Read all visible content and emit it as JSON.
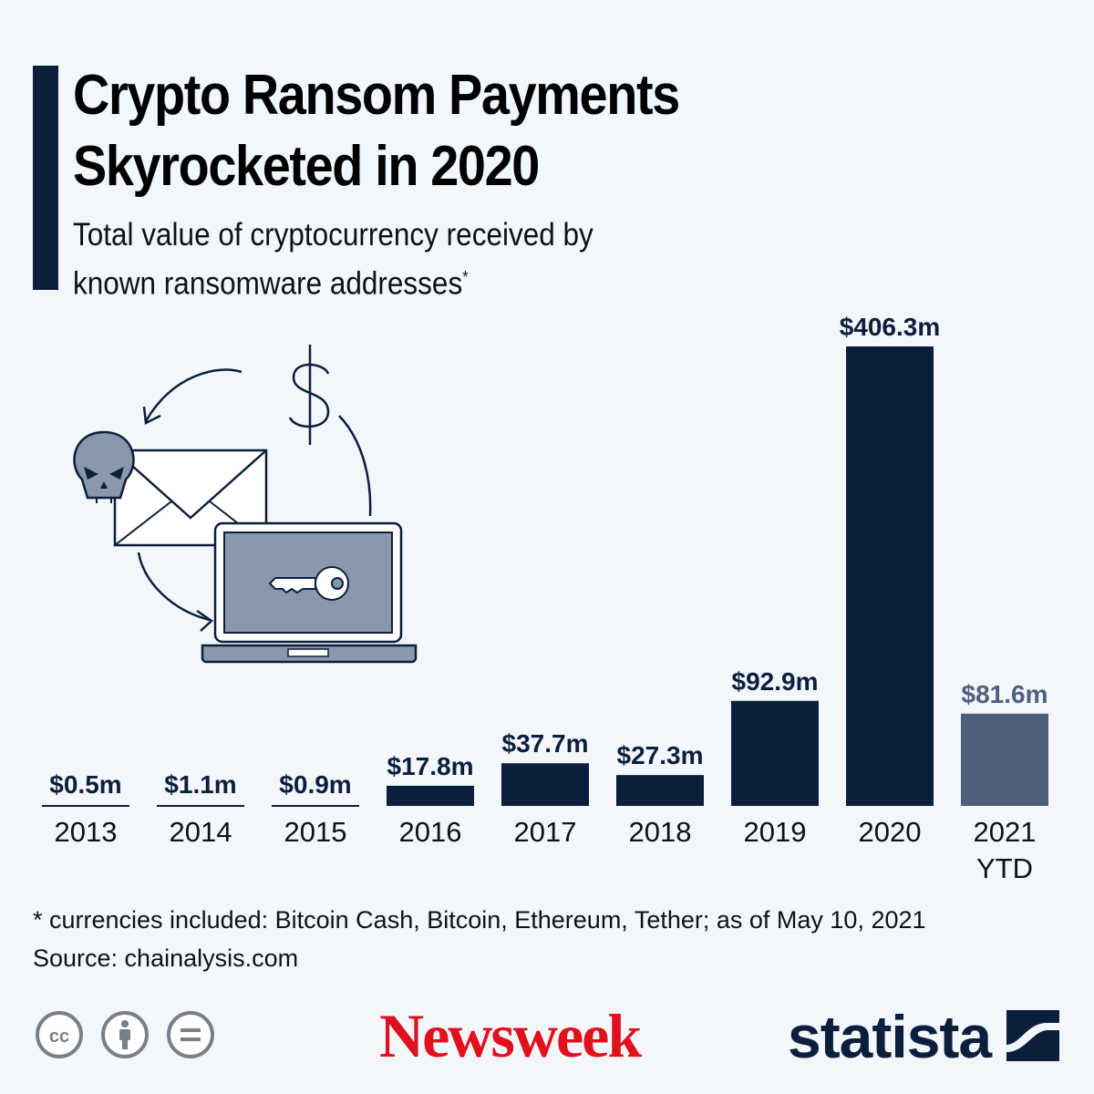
{
  "header": {
    "title_line1": "Crypto Ransom Payments",
    "title_line2": "Skyrocketed in 2020",
    "subtitle_line1": "Total value of cryptocurrency received by",
    "subtitle_line2": "known ransomware addresses",
    "subtitle_marker": "*"
  },
  "chart_data": {
    "type": "bar",
    "title": "Crypto Ransom Payments Skyrocketed in 2020",
    "subtitle": "Total value of cryptocurrency received by known ransomware addresses*",
    "categories": [
      "2013",
      "2014",
      "2015",
      "2016",
      "2017",
      "2018",
      "2019",
      "2020",
      "2021 YTD"
    ],
    "values": [
      0.5,
      1.1,
      0.9,
      17.8,
      37.7,
      27.3,
      92.9,
      406.3,
      81.6
    ],
    "value_labels": [
      "$0.5m",
      "$1.1m",
      "$0.9m",
      "$17.8m",
      "$37.7m",
      "$27.3m",
      "$92.9m",
      "$406.3m",
      "$81.6m"
    ],
    "unit": "million USD",
    "ylim": [
      0,
      406.3
    ],
    "grid": false,
    "legend": "none",
    "colors": {
      "bar": "#0b1f3d",
      "highlight_bar": "#4d5f7a",
      "highlight_index": 8,
      "value_label": "#0b1f3d",
      "highlight_label": "#4d5f7a"
    }
  },
  "footer": {
    "footnote": "* currencies included: Bitcoin Cash, Bitcoin, Ethereum, Tether; as of May 10, 2021",
    "source": "Source: chainalysis.com",
    "newsweek_logo": "Newsweek",
    "statista_logo": "statista",
    "license_icons": [
      "cc-icon",
      "attribution-icon",
      "no-derivatives-icon"
    ]
  },
  "illustration": {
    "icons": [
      "skull-icon",
      "envelope-icon",
      "laptop-icon",
      "key-icon",
      "dollar-icon",
      "cycle-arrows-icon"
    ]
  }
}
